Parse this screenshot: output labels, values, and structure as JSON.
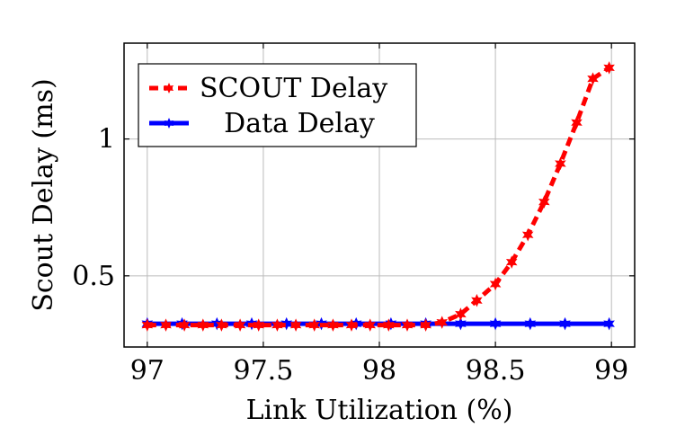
{
  "chart_data": {
    "type": "line",
    "title": "",
    "xlabel": "Link Utilization (%)",
    "ylabel": "Scout Delay (ms)",
    "xlim": [
      96.9,
      99.1
    ],
    "ylim": [
      0.24,
      1.35
    ],
    "xticks": [
      97,
      97.5,
      98,
      98.5,
      99
    ],
    "xtick_labels": [
      "97",
      "97.5",
      "98",
      "98.5",
      "99"
    ],
    "yticks": [
      0.5,
      1
    ],
    "ytick_labels": [
      "0.5",
      "1"
    ],
    "grid": true,
    "legend_position": "top-left",
    "series": [
      {
        "name": "SCOUT Delay",
        "color": "#ff0000",
        "style": "dashed",
        "marker": "star",
        "x": [
          97.0,
          97.08,
          97.16,
          97.24,
          97.32,
          97.4,
          97.48,
          97.56,
          97.64,
          97.72,
          97.8,
          97.88,
          97.96,
          98.04,
          98.12,
          98.2,
          98.27,
          98.35,
          98.42,
          98.5,
          98.57,
          98.64,
          98.71,
          98.78,
          98.85,
          98.92,
          98.99
        ],
        "y": [
          0.32,
          0.32,
          0.32,
          0.32,
          0.32,
          0.32,
          0.32,
          0.32,
          0.32,
          0.32,
          0.32,
          0.32,
          0.32,
          0.32,
          0.32,
          0.32,
          0.33,
          0.36,
          0.41,
          0.47,
          0.55,
          0.65,
          0.77,
          0.91,
          1.06,
          1.22,
          1.26
        ]
      },
      {
        "name": "Data Delay",
        "color": "#0000ff",
        "style": "solid",
        "marker": "star",
        "x": [
          97.0,
          97.15,
          97.3,
          97.45,
          97.6,
          97.75,
          97.9,
          98.05,
          98.2,
          98.35,
          98.5,
          98.65,
          98.8,
          98.99
        ],
        "y": [
          0.325,
          0.325,
          0.325,
          0.325,
          0.325,
          0.325,
          0.325,
          0.325,
          0.325,
          0.325,
          0.325,
          0.325,
          0.325,
          0.325
        ]
      }
    ]
  }
}
